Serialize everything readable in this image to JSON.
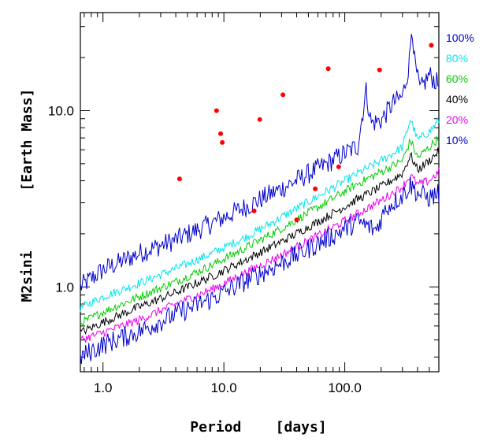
{
  "chart_data": {
    "type": "line",
    "title": "",
    "xlabel": "Period    [days]",
    "ylabel": "M2sini       [Earth Mass]",
    "xscale": "log",
    "yscale": "log",
    "xlim": [
      0.65,
      600
    ],
    "ylim": [
      0.33,
      36
    ],
    "grid": false,
    "legend_position": "right, outside plot",
    "x_tick_labels": [
      {
        "value": 1,
        "label": "1.0"
      },
      {
        "value": 10,
        "label": "10.0"
      },
      {
        "value": 100,
        "label": "100.0"
      }
    ],
    "y_tick_labels": [
      {
        "value": 1,
        "label": "1.0"
      },
      {
        "value": 10,
        "label": "10.0"
      }
    ],
    "series": [
      {
        "name": "100%",
        "color": "#0000cc",
        "x": [
          0.65,
          1,
          2,
          4,
          8,
          16,
          32,
          64,
          128,
          150,
          165,
          200,
          250,
          300,
          340,
          360,
          380,
          420,
          500,
          600
        ],
        "y": [
          1.0,
          1.25,
          1.55,
          1.85,
          2.3,
          2.9,
          3.7,
          4.8,
          6.3,
          13.0,
          8.5,
          8.8,
          11.0,
          12.0,
          18.0,
          32.0,
          18.0,
          13.0,
          16.0,
          14.0
        ]
      },
      {
        "name": "80%",
        "color": "#00e5ee",
        "x": [
          0.65,
          1,
          2,
          4,
          8,
          16,
          32,
          64,
          128,
          200,
          300,
          350,
          400,
          500,
          600
        ],
        "y": [
          0.76,
          0.88,
          1.05,
          1.27,
          1.55,
          1.95,
          2.55,
          3.35,
          4.4,
          5.2,
          6.2,
          9.0,
          6.8,
          7.6,
          8.8
        ]
      },
      {
        "name": "60%",
        "color": "#00cc00",
        "x": [
          0.65,
          1,
          2,
          4,
          8,
          16,
          32,
          64,
          128,
          200,
          300,
          350,
          400,
          500,
          600
        ],
        "y": [
          0.62,
          0.72,
          0.88,
          1.07,
          1.33,
          1.7,
          2.2,
          2.9,
          3.85,
          4.5,
          5.2,
          6.8,
          5.4,
          6.2,
          7.0
        ]
      },
      {
        "name": "40%",
        "color": "#000000",
        "x": [
          0.65,
          1,
          2,
          4,
          8,
          16,
          32,
          64,
          128,
          200,
          300,
          350,
          400,
          500,
          600
        ],
        "y": [
          0.55,
          0.63,
          0.77,
          0.93,
          1.15,
          1.45,
          1.85,
          2.4,
          3.15,
          3.7,
          4.4,
          5.6,
          4.6,
          5.2,
          5.9
        ]
      },
      {
        "name": "20%",
        "color": "#ee00ee",
        "x": [
          0.65,
          1,
          2,
          4,
          8,
          16,
          32,
          64,
          128,
          200,
          300,
          350,
          400,
          500,
          600
        ],
        "y": [
          0.5,
          0.55,
          0.65,
          0.8,
          0.97,
          1.23,
          1.55,
          2.0,
          2.6,
          3.1,
          3.7,
          4.3,
          3.8,
          4.0,
          4.5
        ]
      },
      {
        "name": "10%",
        "color": "#0000cc",
        "x": [
          0.65,
          1,
          2,
          4,
          8,
          16,
          32,
          64,
          128,
          180,
          220,
          300,
          350,
          400,
          500,
          600
        ],
        "y": [
          0.4,
          0.47,
          0.56,
          0.7,
          0.86,
          1.1,
          1.4,
          1.8,
          2.35,
          2.1,
          2.8,
          3.3,
          3.8,
          3.4,
          3.2,
          3.4
        ]
      }
    ],
    "points": {
      "color": "#ff0000",
      "x": [
        4.3,
        8.7,
        9.4,
        9.7,
        17.8,
        19.8,
        30.8,
        40.0,
        57.0,
        73.0,
        89.0,
        194.0,
        520.0
      ],
      "y": [
        4.1,
        10.0,
        7.4,
        6.6,
        2.7,
        8.9,
        12.3,
        2.4,
        3.6,
        17.3,
        4.8,
        17.0,
        23.5
      ]
    }
  }
}
